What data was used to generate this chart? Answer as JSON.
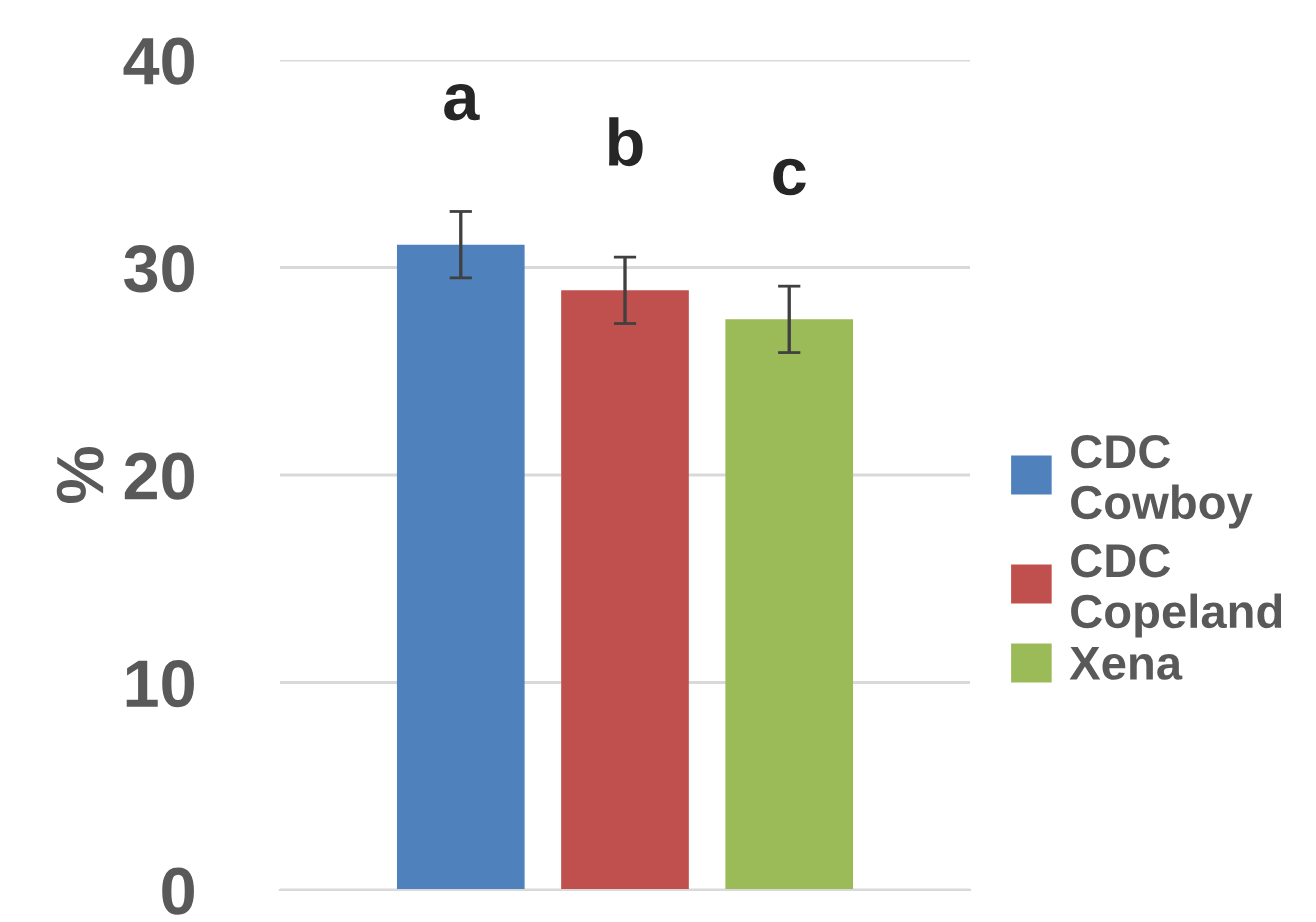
{
  "chart_data": {
    "type": "bar",
    "categories": [
      null
    ],
    "ylabel": "%",
    "ylim": [
      0,
      40
    ],
    "yticks": [
      0,
      10,
      20,
      30,
      40
    ],
    "grid": "y",
    "legend": "right",
    "series": [
      {
        "name": "CDC Cowboy",
        "color": "#4f81bd",
        "values": [
          31.1
        ],
        "errors": [
          1.6
        ]
      },
      {
        "name": "CDC Copeland",
        "color": "#c0504d",
        "values": [
          28.9
        ],
        "errors": [
          1.6
        ]
      },
      {
        "name": "Xena",
        "color": "#9bbb59",
        "values": [
          27.5
        ],
        "errors": [
          1.6
        ]
      }
    ],
    "annotations": [
      "a",
      "b",
      "c"
    ]
  }
}
